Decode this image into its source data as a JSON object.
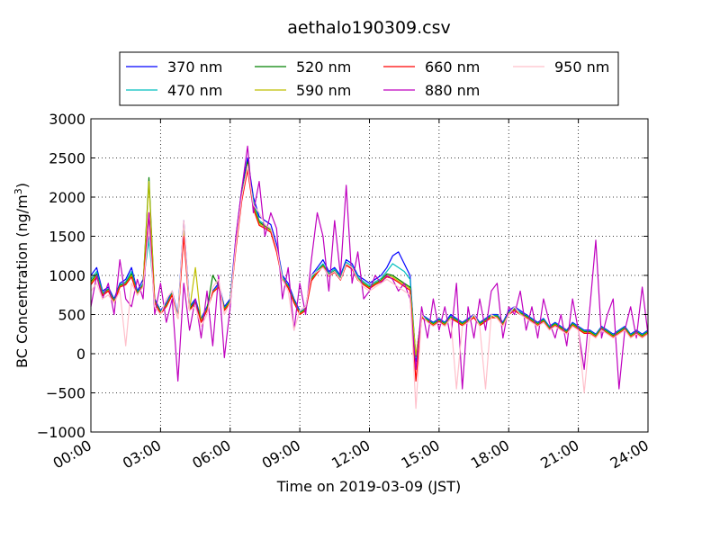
{
  "chart_data": {
    "type": "line",
    "title": "aethalo190309.csv",
    "xlabel": "Time on 2019-03-09 (JST)",
    "ylabel_main": "BC Concentration (ng/m",
    "ylabel_sup": "3",
    "ylabel_close": ")",
    "xlim": [
      0,
      24
    ],
    "ylim": [
      -1000,
      3000
    ],
    "grid": true,
    "legend_position": "top",
    "x_ticks": [
      0,
      3,
      6,
      9,
      12,
      15,
      18,
      21,
      24
    ],
    "x_tick_labels": [
      "00:00",
      "03:00",
      "06:00",
      "09:00",
      "12:00",
      "15:00",
      "18:00",
      "21:00",
      "24:00"
    ],
    "y_ticks": [
      -1000,
      -500,
      0,
      500,
      1000,
      1500,
      2000,
      2500,
      3000
    ],
    "y_tick_labels": [
      "−1000",
      "−500",
      "0",
      "500",
      "1000",
      "1500",
      "2000",
      "2500",
      "3000"
    ],
    "x": [
      0.0,
      0.25,
      0.5,
      0.75,
      1.0,
      1.25,
      1.5,
      1.75,
      2.0,
      2.25,
      2.5,
      2.75,
      3.0,
      3.25,
      3.5,
      3.75,
      4.0,
      4.25,
      4.5,
      4.75,
      5.0,
      5.25,
      5.5,
      5.75,
      6.0,
      6.25,
      6.5,
      6.75,
      7.0,
      7.25,
      7.5,
      7.75,
      8.0,
      8.25,
      8.5,
      8.75,
      9.0,
      9.25,
      9.5,
      9.75,
      10.0,
      10.25,
      10.5,
      10.75,
      11.0,
      11.25,
      11.5,
      11.75,
      12.0,
      12.25,
      12.5,
      12.75,
      13.0,
      13.25,
      13.5,
      13.75,
      14.0,
      14.25,
      14.5,
      14.75,
      15.0,
      15.25,
      15.5,
      15.75,
      16.0,
      16.25,
      16.5,
      16.75,
      17.0,
      17.25,
      17.5,
      17.75,
      18.0,
      18.25,
      18.5,
      18.75,
      19.0,
      19.25,
      19.5,
      19.75,
      20.0,
      20.25,
      20.5,
      20.75,
      21.0,
      21.25,
      21.5,
      21.75,
      22.0,
      22.25,
      22.5,
      22.75,
      23.0,
      23.25,
      23.5,
      23.75,
      24.0
    ],
    "series": [
      {
        "name": "370 nm",
        "color": "#0000ff",
        "values": [
          1000,
          1100,
          800,
          850,
          700,
          900,
          950,
          1100,
          800,
          950,
          1500,
          700,
          550,
          650,
          800,
          500,
          1700,
          600,
          700,
          450,
          600,
          800,
          900,
          600,
          700,
          1500,
          2100,
          2500,
          2000,
          1750,
          1700,
          1650,
          1400,
          1000,
          900,
          700,
          550,
          600,
          1000,
          1100,
          1200,
          1050,
          1100,
          1000,
          1200,
          1150,
          1000,
          950,
          900,
          950,
          1000,
          1100,
          1250,
          1300,
          1150,
          1000,
          -100,
          500,
          450,
          400,
          450,
          400,
          500,
          450,
          400,
          450,
          500,
          400,
          450,
          500,
          500,
          400,
          550,
          600,
          550,
          500,
          450,
          400,
          450,
          350,
          400,
          350,
          300,
          400,
          350,
          300,
          300,
          250,
          350,
          300,
          250,
          300,
          350,
          250,
          300,
          250,
          300
        ]
      },
      {
        "name": "470 nm",
        "color": "#00bfbf",
        "values": [
          950,
          1050,
          780,
          830,
          680,
          880,
          920,
          1050,
          780,
          900,
          1450,
          680,
          540,
          630,
          780,
          480,
          1650,
          580,
          680,
          430,
          580,
          780,
          880,
          580,
          680,
          1450,
          2050,
          2400,
          1950,
          1700,
          1650,
          1600,
          1350,
          980,
          870,
          680,
          530,
          580,
          970,
          1070,
          1150,
          1030,
          1080,
          980,
          1170,
          1120,
          980,
          920,
          870,
          920,
          960,
          1050,
          1150,
          1100,
          1050,
          950,
          -50,
          490,
          440,
          390,
          440,
          390,
          480,
          440,
          390,
          440,
          490,
          390,
          440,
          490,
          490,
          390,
          530,
          580,
          530,
          490,
          440,
          390,
          440,
          340,
          390,
          340,
          290,
          390,
          340,
          290,
          290,
          240,
          340,
          290,
          240,
          290,
          340,
          240,
          290,
          240,
          290
        ]
      },
      {
        "name": "520 nm",
        "color": "#008000",
        "values": [
          920,
          1020,
          760,
          820,
          670,
          870,
          900,
          1020,
          770,
          880,
          2250,
          670,
          530,
          620,
          770,
          470,
          1600,
          570,
          670,
          420,
          570,
          1000,
          870,
          570,
          670,
          1400,
          2000,
          2450,
          1900,
          1680,
          1630,
          1580,
          1330,
          960,
          860,
          670,
          520,
          570,
          950,
          1050,
          1130,
          1010,
          1060,
          960,
          1150,
          1100,
          960,
          900,
          850,
          900,
          940,
          1020,
          1000,
          950,
          900,
          850,
          -30,
          480,
          430,
          380,
          430,
          380,
          470,
          430,
          380,
          430,
          480,
          380,
          430,
          480,
          480,
          380,
          520,
          570,
          520,
          480,
          430,
          380,
          430,
          330,
          380,
          330,
          280,
          380,
          330,
          280,
          280,
          230,
          330,
          280,
          230,
          280,
          330,
          230,
          280,
          230,
          280
        ]
      },
      {
        "name": "590 nm",
        "color": "#bfbf00",
        "values": [
          900,
          1000,
          750,
          810,
          660,
          860,
          890,
          1000,
          760,
          870,
          2200,
          660,
          520,
          610,
          760,
          460,
          1550,
          560,
          1100,
          410,
          560,
          790,
          860,
          560,
          660,
          1380,
          1980,
          2420,
          1880,
          1660,
          1620,
          1570,
          1320,
          950,
          850,
          660,
          510,
          560,
          940,
          1040,
          1120,
          1000,
          1050,
          950,
          1140,
          1090,
          950,
          890,
          840,
          890,
          930,
          1000,
          980,
          930,
          880,
          830,
          -20,
          470,
          420,
          370,
          420,
          370,
          460,
          420,
          370,
          420,
          470,
          370,
          420,
          470,
          470,
          370,
          510,
          560,
          510,
          470,
          420,
          370,
          420,
          320,
          370,
          320,
          270,
          370,
          320,
          270,
          270,
          220,
          320,
          270,
          220,
          270,
          320,
          220,
          270,
          220,
          270
        ]
      },
      {
        "name": "660 nm",
        "color": "#ff0000",
        "values": [
          880,
          980,
          740,
          800,
          650,
          850,
          880,
          980,
          750,
          860,
          1800,
          650,
          510,
          600,
          750,
          450,
          1500,
          550,
          660,
          400,
          550,
          780,
          850,
          550,
          650,
          1350,
          1950,
          2350,
          1850,
          1640,
          1600,
          1550,
          1300,
          940,
          840,
          650,
          500,
          550,
          930,
          1030,
          1110,
          990,
          1040,
          940,
          1130,
          1080,
          940,
          880,
          830,
          880,
          920,
          980,
          960,
          910,
          860,
          810,
          -350,
          460,
          410,
          360,
          410,
          360,
          450,
          410,
          360,
          410,
          460,
          360,
          410,
          460,
          460,
          360,
          500,
          550,
          500,
          460,
          410,
          360,
          410,
          310,
          360,
          310,
          260,
          360,
          310,
          260,
          260,
          210,
          310,
          260,
          210,
          260,
          310,
          210,
          260,
          210,
          260
        ]
      },
      {
        "name": "880 nm",
        "color": "#bf00bf",
        "values": [
          600,
          1000,
          700,
          900,
          500,
          1200,
          700,
          600,
          950,
          700,
          1800,
          500,
          900,
          400,
          700,
          -350,
          900,
          300,
          700,
          200,
          800,
          100,
          1000,
          -50,
          600,
          1500,
          2100,
          2650,
          1800,
          2200,
          1500,
          1800,
          1600,
          700,
          1100,
          300,
          900,
          500,
          1200,
          1800,
          1500,
          800,
          1700,
          1000,
          2150,
          900,
          1300,
          700,
          800,
          1000,
          900,
          1000,
          950,
          800,
          900,
          700,
          -200,
          600,
          200,
          700,
          300,
          600,
          200,
          900,
          -450,
          600,
          200,
          700,
          300,
          800,
          900,
          200,
          600,
          500,
          800,
          300,
          600,
          200,
          700,
          400,
          200,
          500,
          100,
          700,
          300,
          -200,
          600,
          1450,
          200,
          500,
          700,
          -450,
          300,
          600,
          200,
          850,
          250
        ]
      },
      {
        "name": "950 nm",
        "color": "#ffc0cb",
        "values": [
          800,
          900,
          700,
          750,
          650,
          800,
          100,
          900,
          750,
          850,
          1600,
          600,
          500,
          700,
          800,
          450,
          1700,
          550,
          600,
          350,
          500,
          850,
          950,
          500,
          650,
          1400,
          2000,
          2400,
          1900,
          1800,
          1650,
          1600,
          1350,
          950,
          800,
          300,
          550,
          600,
          1000,
          1050,
          1100,
          1000,
          1050,
          950,
          1150,
          1100,
          950,
          850,
          800,
          850,
          900,
          950,
          900,
          850,
          800,
          750,
          -700,
          500,
          400,
          350,
          400,
          350,
          450,
          -450,
          350,
          400,
          500,
          350,
          -450,
          500,
          450,
          350,
          500,
          600,
          500,
          450,
          400,
          350,
          400,
          300,
          350,
          300,
          250,
          350,
          300,
          -500,
          250,
          200,
          300,
          250,
          200,
          250,
          300,
          200,
          250,
          200,
          250
        ]
      }
    ]
  }
}
